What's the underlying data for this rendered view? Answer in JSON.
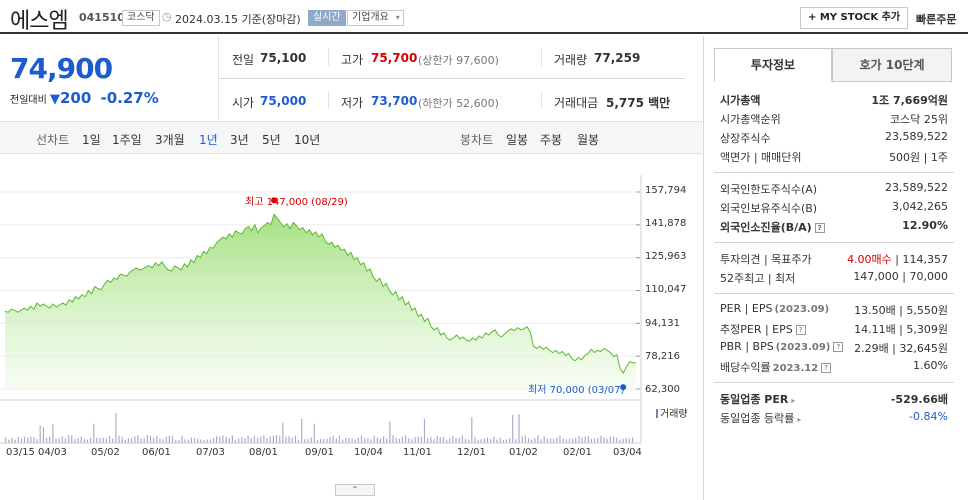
{
  "header": {
    "name": "에스엠",
    "code": "041510",
    "market": "코스닥",
    "date": "2024.03.15 기준(장마감)",
    "realtime": "실시간",
    "company_info": "기업개요",
    "mystock": "+ MY STOCK 추가",
    "quick_order": "빠른주문"
  },
  "price": {
    "current": "74,900",
    "vs_label": "전일대비",
    "change": "200",
    "change_pct": "-0.27%"
  },
  "quote": {
    "prev_label": "전일",
    "prev": "75,100",
    "high_label": "고가",
    "high": "75,700",
    "upper_limit": "(상한가 97,600)",
    "volume_label": "거래량",
    "volume": "77,259",
    "open_label": "시가",
    "open": "75,000",
    "low_label": "저가",
    "low": "73,700",
    "lower_limit": "(하한가 52,600)",
    "amount_label": "거래대금",
    "amount": "5,775 백만"
  },
  "tabs": {
    "line_chart": "선차트",
    "periods": [
      "1일",
      "1주일",
      "3개월",
      "1년",
      "3년",
      "5년",
      "10년"
    ],
    "selected": "1년",
    "candle_chart": "봉차트",
    "candle_periods": [
      "일봉",
      "주봉",
      "월봉"
    ]
  },
  "chart_data": {
    "type": "area",
    "y_ticks": [
      "157,794",
      "141,878",
      "125,963",
      "110,047",
      "94,131",
      "78,216",
      "62,300"
    ],
    "ylim": [
      62300,
      157794
    ],
    "x_ticks": [
      "03/15",
      "04/03",
      "05/02",
      "06/01",
      "07/03",
      "08/01",
      "09/01",
      "10/04",
      "11/01",
      "12/01",
      "01/02",
      "02/01",
      "03/04"
    ],
    "series": [
      {
        "values": [
          100000,
          99500,
          101000,
          100500,
          99500,
          100500,
          101500,
          100500,
          102500,
          101000,
          104000,
          102500,
          103500,
          102500,
          101500,
          103500,
          102000,
          103000,
          104000,
          103000,
          105500,
          104500,
          107000,
          106000,
          108000,
          107000,
          110000,
          108500,
          112000,
          111000,
          110500,
          113000,
          115000,
          114000,
          116000,
          115500,
          118000,
          117500,
          117000,
          119000,
          120000,
          121000,
          120000,
          120500,
          121500,
          122000,
          121000,
          123500,
          122000,
          124000,
          121500,
          120000,
          119500,
          122000,
          121000,
          120000,
          123000,
          121500,
          125000,
          123500,
          127000,
          126000,
          129000,
          128000,
          131000,
          130500,
          133000,
          134500,
          136000,
          135000,
          137500,
          136000,
          139000,
          138000,
          137500,
          140000,
          141000,
          139000,
          142000,
          138000,
          140500,
          141500,
          143000,
          142000,
          147000,
          145000,
          143000,
          141000,
          142500,
          140000,
          143000,
          141500,
          139500,
          140500,
          138000,
          139500,
          137000,
          138500,
          136000,
          137500,
          134000,
          132500,
          133500,
          131000,
          132000,
          129500,
          130000,
          127000,
          128500,
          125000,
          126000,
          122500,
          123500,
          119500,
          120500,
          116500,
          114500,
          116000,
          112000,
          113500,
          110000,
          108000,
          109500,
          105500,
          107000,
          103000,
          104500,
          100500,
          101500,
          97500,
          98500,
          95000,
          96500,
          92500,
          91000,
          92000,
          88500,
          89500,
          87000,
          86000,
          87000,
          88500,
          86500,
          87500,
          86000,
          85500,
          87000,
          86000,
          88000,
          87000,
          89500,
          88500,
          90000,
          91000,
          88500,
          87500,
          89000,
          90500,
          91500,
          90500,
          92000,
          91000,
          91500,
          92500,
          90000,
          83000,
          82000,
          83000,
          81500,
          82500,
          81000,
          80000,
          81000,
          79500,
          80500,
          78500,
          79500,
          77000,
          76000,
          77500,
          76500,
          78500,
          79500,
          81500,
          80000,
          81000,
          80500,
          82000,
          81000,
          80000,
          78000,
          79000,
          72500,
          70000,
          73000,
          75500,
          75100,
          74900
        ]
      }
    ],
    "annotations": {
      "max_label": "최고 147,000 (08/29)",
      "min_label": "최저 70,000 (03/07)",
      "max": 147000,
      "min": 70000
    },
    "volume_label": "거래량"
  },
  "sidebar": {
    "tab_active": "투자정보",
    "tab_other": "호가 10단계",
    "sec1": [
      {
        "label": "시가총액",
        "value": "1조 7,669억원",
        "bold": true
      },
      {
        "label": "시가총액순위",
        "value": "코스닥 25위"
      },
      {
        "label": "상장주식수",
        "value": "23,589,522"
      },
      {
        "label": "액면가 | 매매단위",
        "value": "500원 | 1주"
      }
    ],
    "sec2": [
      {
        "label": "외국인한도주식수(A)",
        "value": "23,589,522"
      },
      {
        "label": "외국인보유주식수(B)",
        "value": "3,042,265"
      },
      {
        "label": "외국인소진율(B/A)",
        "value": "12.90%",
        "bold": true
      }
    ],
    "sec3": [
      {
        "label": "투자의견 | 목표주가",
        "value_red": "4.00매수",
        "value": "| 114,357"
      },
      {
        "label": "52주최고 | 최저",
        "value": "147,000 | 70,000"
      }
    ],
    "sec4": [
      {
        "label": "PER | EPS",
        "label_suffix": "(2023.09)",
        "value": "13.50배 | 5,550원"
      },
      {
        "label": "추정PER | EPS",
        "label_suffix": "",
        "value": "14.11배 | 5,309원"
      },
      {
        "label": "PBR | BPS",
        "label_suffix": "(2023.09)",
        "value": "2.29배 | 32,645원"
      },
      {
        "label": "배당수익률",
        "label_suffix": "2023.12",
        "value": "1.60%"
      }
    ],
    "sec5": [
      {
        "label": "동일업종 PER",
        "value": "-529.66배",
        "bold": true
      },
      {
        "label": "동일업종 등락률",
        "value": "-0.84%",
        "blue": true
      }
    ]
  }
}
